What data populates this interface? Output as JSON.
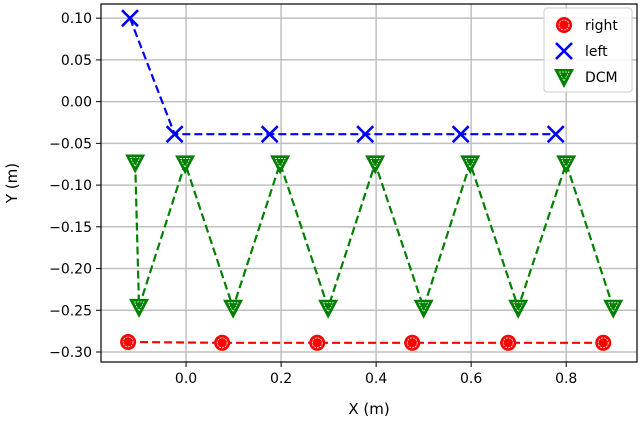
{
  "chart_data": {
    "type": "line",
    "title": "",
    "xlabel": "X (m)",
    "ylabel": "Y (m)",
    "xlim": [
      -0.179,
      0.949
    ],
    "ylim": [
      -0.312,
      0.117
    ],
    "grid": true,
    "legend_position": "top-right",
    "xticks": [
      0.0,
      0.2,
      0.4,
      0.6,
      0.8
    ],
    "xtick_labels": [
      "0.0",
      "0.2",
      "0.4",
      "0.6",
      "0.8"
    ],
    "yticks": [
      0.1,
      0.05,
      0.0,
      -0.05,
      -0.1,
      -0.15,
      -0.2,
      -0.25,
      -0.3
    ],
    "ytick_labels": [
      "0.10",
      "0.05",
      "0.00",
      "−0.05",
      "−0.10",
      "−0.15",
      "−0.20",
      "−0.25",
      "−0.30"
    ],
    "series": [
      {
        "name": "right",
        "color": "#ff0000",
        "marker": "circle",
        "linestyle": "dashed",
        "x": [
          -0.122,
          0.076,
          0.276,
          0.476,
          0.678,
          0.878
        ],
        "y": [
          -0.288,
          -0.289,
          -0.289,
          -0.289,
          -0.289,
          -0.289
        ]
      },
      {
        "name": "left",
        "color": "#0000ff",
        "marker": "x",
        "linestyle": "dashed",
        "x": [
          -0.118,
          -0.024,
          0.176,
          0.377,
          0.578,
          0.778
        ],
        "y": [
          0.1,
          -0.039,
          -0.039,
          -0.039,
          -0.039,
          -0.039
        ]
      },
      {
        "name": "DCM",
        "color": "#008000",
        "marker": "triangle-down",
        "linestyle": "dashed",
        "x": [
          -0.107,
          -0.099,
          -0.002,
          0.099,
          0.198,
          0.299,
          0.398,
          0.5,
          0.598,
          0.699,
          0.8,
          0.899
        ],
        "y": [
          -0.073,
          -0.246,
          -0.074,
          -0.247,
          -0.074,
          -0.247,
          -0.074,
          -0.247,
          -0.074,
          -0.247,
          -0.074,
          -0.247
        ]
      }
    ]
  }
}
